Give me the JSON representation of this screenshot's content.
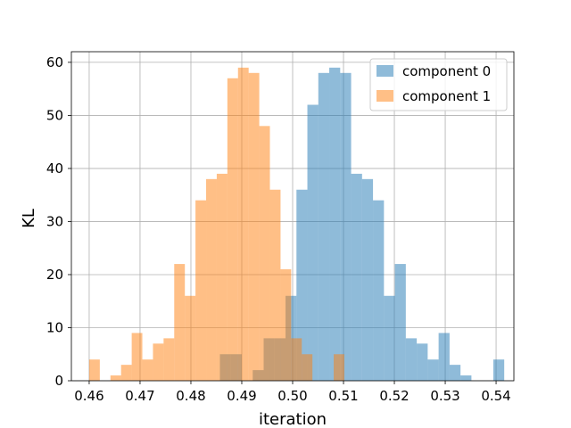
{
  "chart_data": {
    "type": "bar",
    "subtype": "overlapping-histogram",
    "xlabel": "iteration",
    "ylabel": "KL",
    "xlim": [
      0.4565,
      0.5435
    ],
    "ylim": [
      0,
      62
    ],
    "xticks": [
      0.46,
      0.47,
      0.48,
      0.49,
      0.5,
      0.51,
      0.52,
      0.53,
      0.54
    ],
    "xtick_labels": [
      "0.46",
      "0.47",
      "0.48",
      "0.49",
      "0.50",
      "0.51",
      "0.52",
      "0.53",
      "0.54"
    ],
    "yticks": [
      0,
      10,
      20,
      30,
      40,
      50,
      60
    ],
    "ytick_labels": [
      "0",
      "10",
      "20",
      "30",
      "40",
      "50",
      "60"
    ],
    "grid": true,
    "legend_placement": "upper right",
    "series": [
      {
        "name": "component 0",
        "color": "#1f77b4",
        "alpha": 0.5,
        "bin_start": 0.4857,
        "bin_width": 0.00215,
        "values": [
          5,
          5,
          0,
          2,
          8,
          8,
          16,
          36,
          52,
          58,
          59,
          58,
          39,
          38,
          34,
          16,
          22,
          8,
          7,
          4,
          9,
          3,
          1,
          0,
          0,
          4
        ]
      },
      {
        "name": "component 1",
        "color": "#ff7f0e",
        "alpha": 0.5,
        "bin_start": 0.46,
        "bin_width": 0.00209,
        "values": [
          4,
          0,
          1,
          3,
          9,
          4,
          7,
          8,
          22,
          16,
          34,
          38,
          39,
          57,
          59,
          58,
          48,
          36,
          21,
          8,
          5,
          0,
          0,
          5
        ]
      }
    ]
  }
}
